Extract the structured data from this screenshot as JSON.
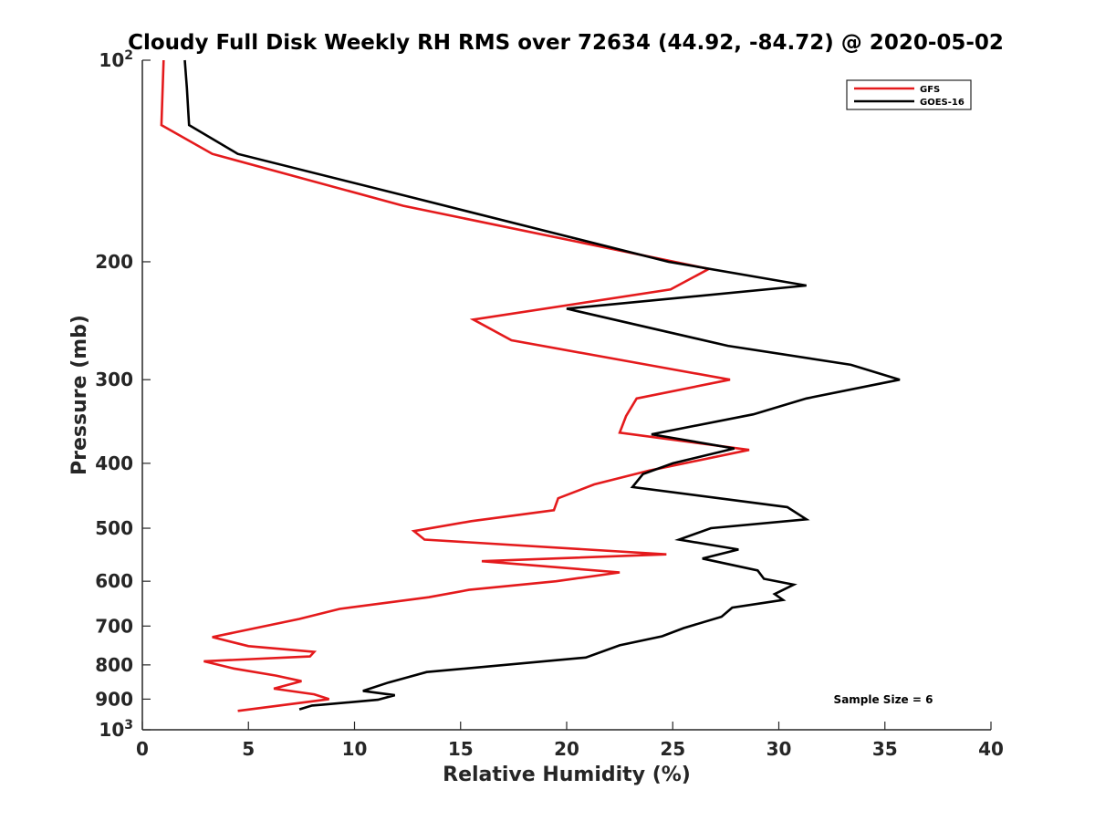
{
  "chart_data": {
    "type": "line",
    "title": "Cloudy Full Disk Weekly RH RMS over 72634 (44.92, -84.72) @ 2020-05-02",
    "xlabel": "Relative Humidity (%)",
    "ylabel": "Pressure (mb)",
    "xlim": [
      0,
      40
    ],
    "ylim": [
      100,
      1000
    ],
    "y_scale": "log",
    "y_reversed": true,
    "x_ticks": [
      "0",
      "5",
      "10",
      "15",
      "20",
      "25",
      "30",
      "35",
      "40"
    ],
    "y_ticks": [
      {
        "value": 100,
        "base": "10",
        "exp": "2"
      },
      {
        "value": 200,
        "label": "200"
      },
      {
        "value": 300,
        "label": "300"
      },
      {
        "value": 400,
        "label": "400"
      },
      {
        "value": 500,
        "label": "500"
      },
      {
        "value": 600,
        "label": "600"
      },
      {
        "value": 700,
        "label": "700"
      },
      {
        "value": 800,
        "label": "800"
      },
      {
        "value": 900,
        "label": "900"
      },
      {
        "value": 1000,
        "base": "10",
        "exp": "3"
      }
    ],
    "legend_position": "top-right",
    "grid": false,
    "series": [
      {
        "name": "GFS",
        "color": "#e41a1c",
        "points": [
          [
            1.0,
            100
          ],
          [
            0.9,
            125
          ],
          [
            3.3,
            138
          ],
          [
            12.3,
            165
          ],
          [
            26.7,
            205
          ],
          [
            24.9,
            220
          ],
          [
            15.6,
            244
          ],
          [
            17.4,
            262
          ],
          [
            23.8,
            285
          ],
          [
            27.7,
            300
          ],
          [
            23.3,
            320
          ],
          [
            22.8,
            340
          ],
          [
            22.5,
            360
          ],
          [
            28.6,
            382
          ],
          [
            23.9,
            410
          ],
          [
            21.3,
            430
          ],
          [
            19.6,
            451
          ],
          [
            19.4,
            470
          ],
          [
            15.5,
            488
          ],
          [
            12.8,
            505
          ],
          [
            13.3,
            520
          ],
          [
            24.7,
            547
          ],
          [
            16.0,
            560
          ],
          [
            22.5,
            582
          ],
          [
            19.5,
            600
          ],
          [
            15.4,
            618
          ],
          [
            13.5,
            634
          ],
          [
            9.3,
            660
          ],
          [
            7.4,
            683
          ],
          [
            3.3,
            727
          ],
          [
            5.0,
            750
          ],
          [
            8.1,
            765
          ],
          [
            7.9,
            777
          ],
          [
            2.9,
            790
          ],
          [
            4.3,
            810
          ],
          [
            6.3,
            830
          ],
          [
            7.5,
            846
          ],
          [
            6.2,
            868
          ],
          [
            8.1,
            885
          ],
          [
            8.8,
            900
          ],
          [
            4.5,
            937
          ]
        ]
      },
      {
        "name": "GOES-16",
        "color": "#000000",
        "points": [
          [
            2.0,
            100
          ],
          [
            2.1,
            110
          ],
          [
            2.2,
            125
          ],
          [
            4.5,
            138
          ],
          [
            12.6,
            160
          ],
          [
            24.8,
            200
          ],
          [
            31.3,
            217
          ],
          [
            20.0,
            235
          ],
          [
            27.6,
            267
          ],
          [
            33.4,
            285
          ],
          [
            35.7,
            300
          ],
          [
            31.3,
            320
          ],
          [
            28.8,
            338
          ],
          [
            24.0,
            362
          ],
          [
            27.9,
            380
          ],
          [
            25.0,
            400
          ],
          [
            23.6,
            415
          ],
          [
            23.1,
            434
          ],
          [
            30.4,
            465
          ],
          [
            31.3,
            485
          ],
          [
            26.8,
            500
          ],
          [
            25.3,
            520
          ],
          [
            28.1,
            538
          ],
          [
            26.4,
            555
          ],
          [
            29.0,
            578
          ],
          [
            29.3,
            595
          ],
          [
            30.7,
            607
          ],
          [
            29.8,
            627
          ],
          [
            30.2,
            640
          ],
          [
            27.8,
            657
          ],
          [
            27.3,
            678
          ],
          [
            25.5,
            705
          ],
          [
            24.5,
            725
          ],
          [
            22.5,
            748
          ],
          [
            20.9,
            780
          ],
          [
            13.4,
            820
          ],
          [
            12.5,
            835
          ],
          [
            11.6,
            850
          ],
          [
            10.4,
            875
          ],
          [
            11.9,
            888
          ],
          [
            11.1,
            902
          ],
          [
            8.4,
            918
          ],
          [
            8.0,
            920
          ],
          [
            7.4,
            932
          ]
        ]
      }
    ],
    "annotation": "Sample Size = 6"
  }
}
